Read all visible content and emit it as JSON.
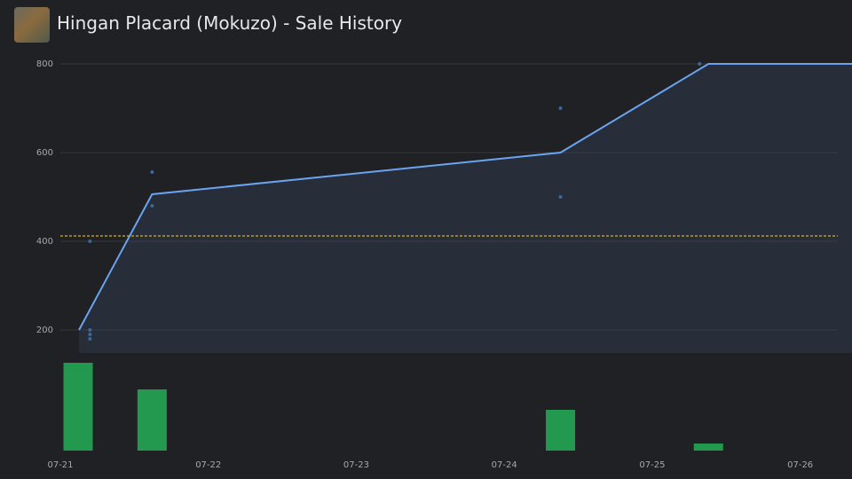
{
  "chart_data": {
    "type": "line",
    "title": "Hingan Placard (Mokuzo) - Sale History",
    "x": [
      0.126,
      0.62,
      3.38,
      4.38,
      5.35
    ],
    "series": [
      {
        "color": "#6aa4f0",
        "values": [
          200,
          506,
          600,
          800,
          800
        ]
      }
    ],
    "points": {
      "color": "#3d6796",
      "x": [
        0.2,
        0.2,
        0.2,
        0.2,
        0.62,
        0.62,
        3.38,
        3.38,
        4.32
      ],
      "values": [
        400,
        200,
        190,
        180,
        556,
        480,
        700,
        500,
        800
      ]
    },
    "average": {
      "value": 412,
      "color": "#d4b12a"
    },
    "volume": {
      "color": "#22994f",
      "x": [
        0.12,
        0.62,
        3.38,
        4.38
      ],
      "values": [
        99,
        69,
        46,
        8
      ],
      "ylim": [
        0,
        100
      ]
    },
    "xlim": [
      0,
      5.35
    ],
    "xticks": [
      {
        "value": 0,
        "label": "07-21"
      },
      {
        "value": 1,
        "label": "07-22"
      },
      {
        "value": 2,
        "label": "07-23"
      },
      {
        "value": 3,
        "label": "07-24"
      },
      {
        "value": 4,
        "label": "07-25"
      },
      {
        "value": 5,
        "label": "07-26"
      }
    ],
    "ylim": [
      148,
      800
    ],
    "yticks": [
      200,
      400,
      600,
      800
    ],
    "grid": true
  }
}
